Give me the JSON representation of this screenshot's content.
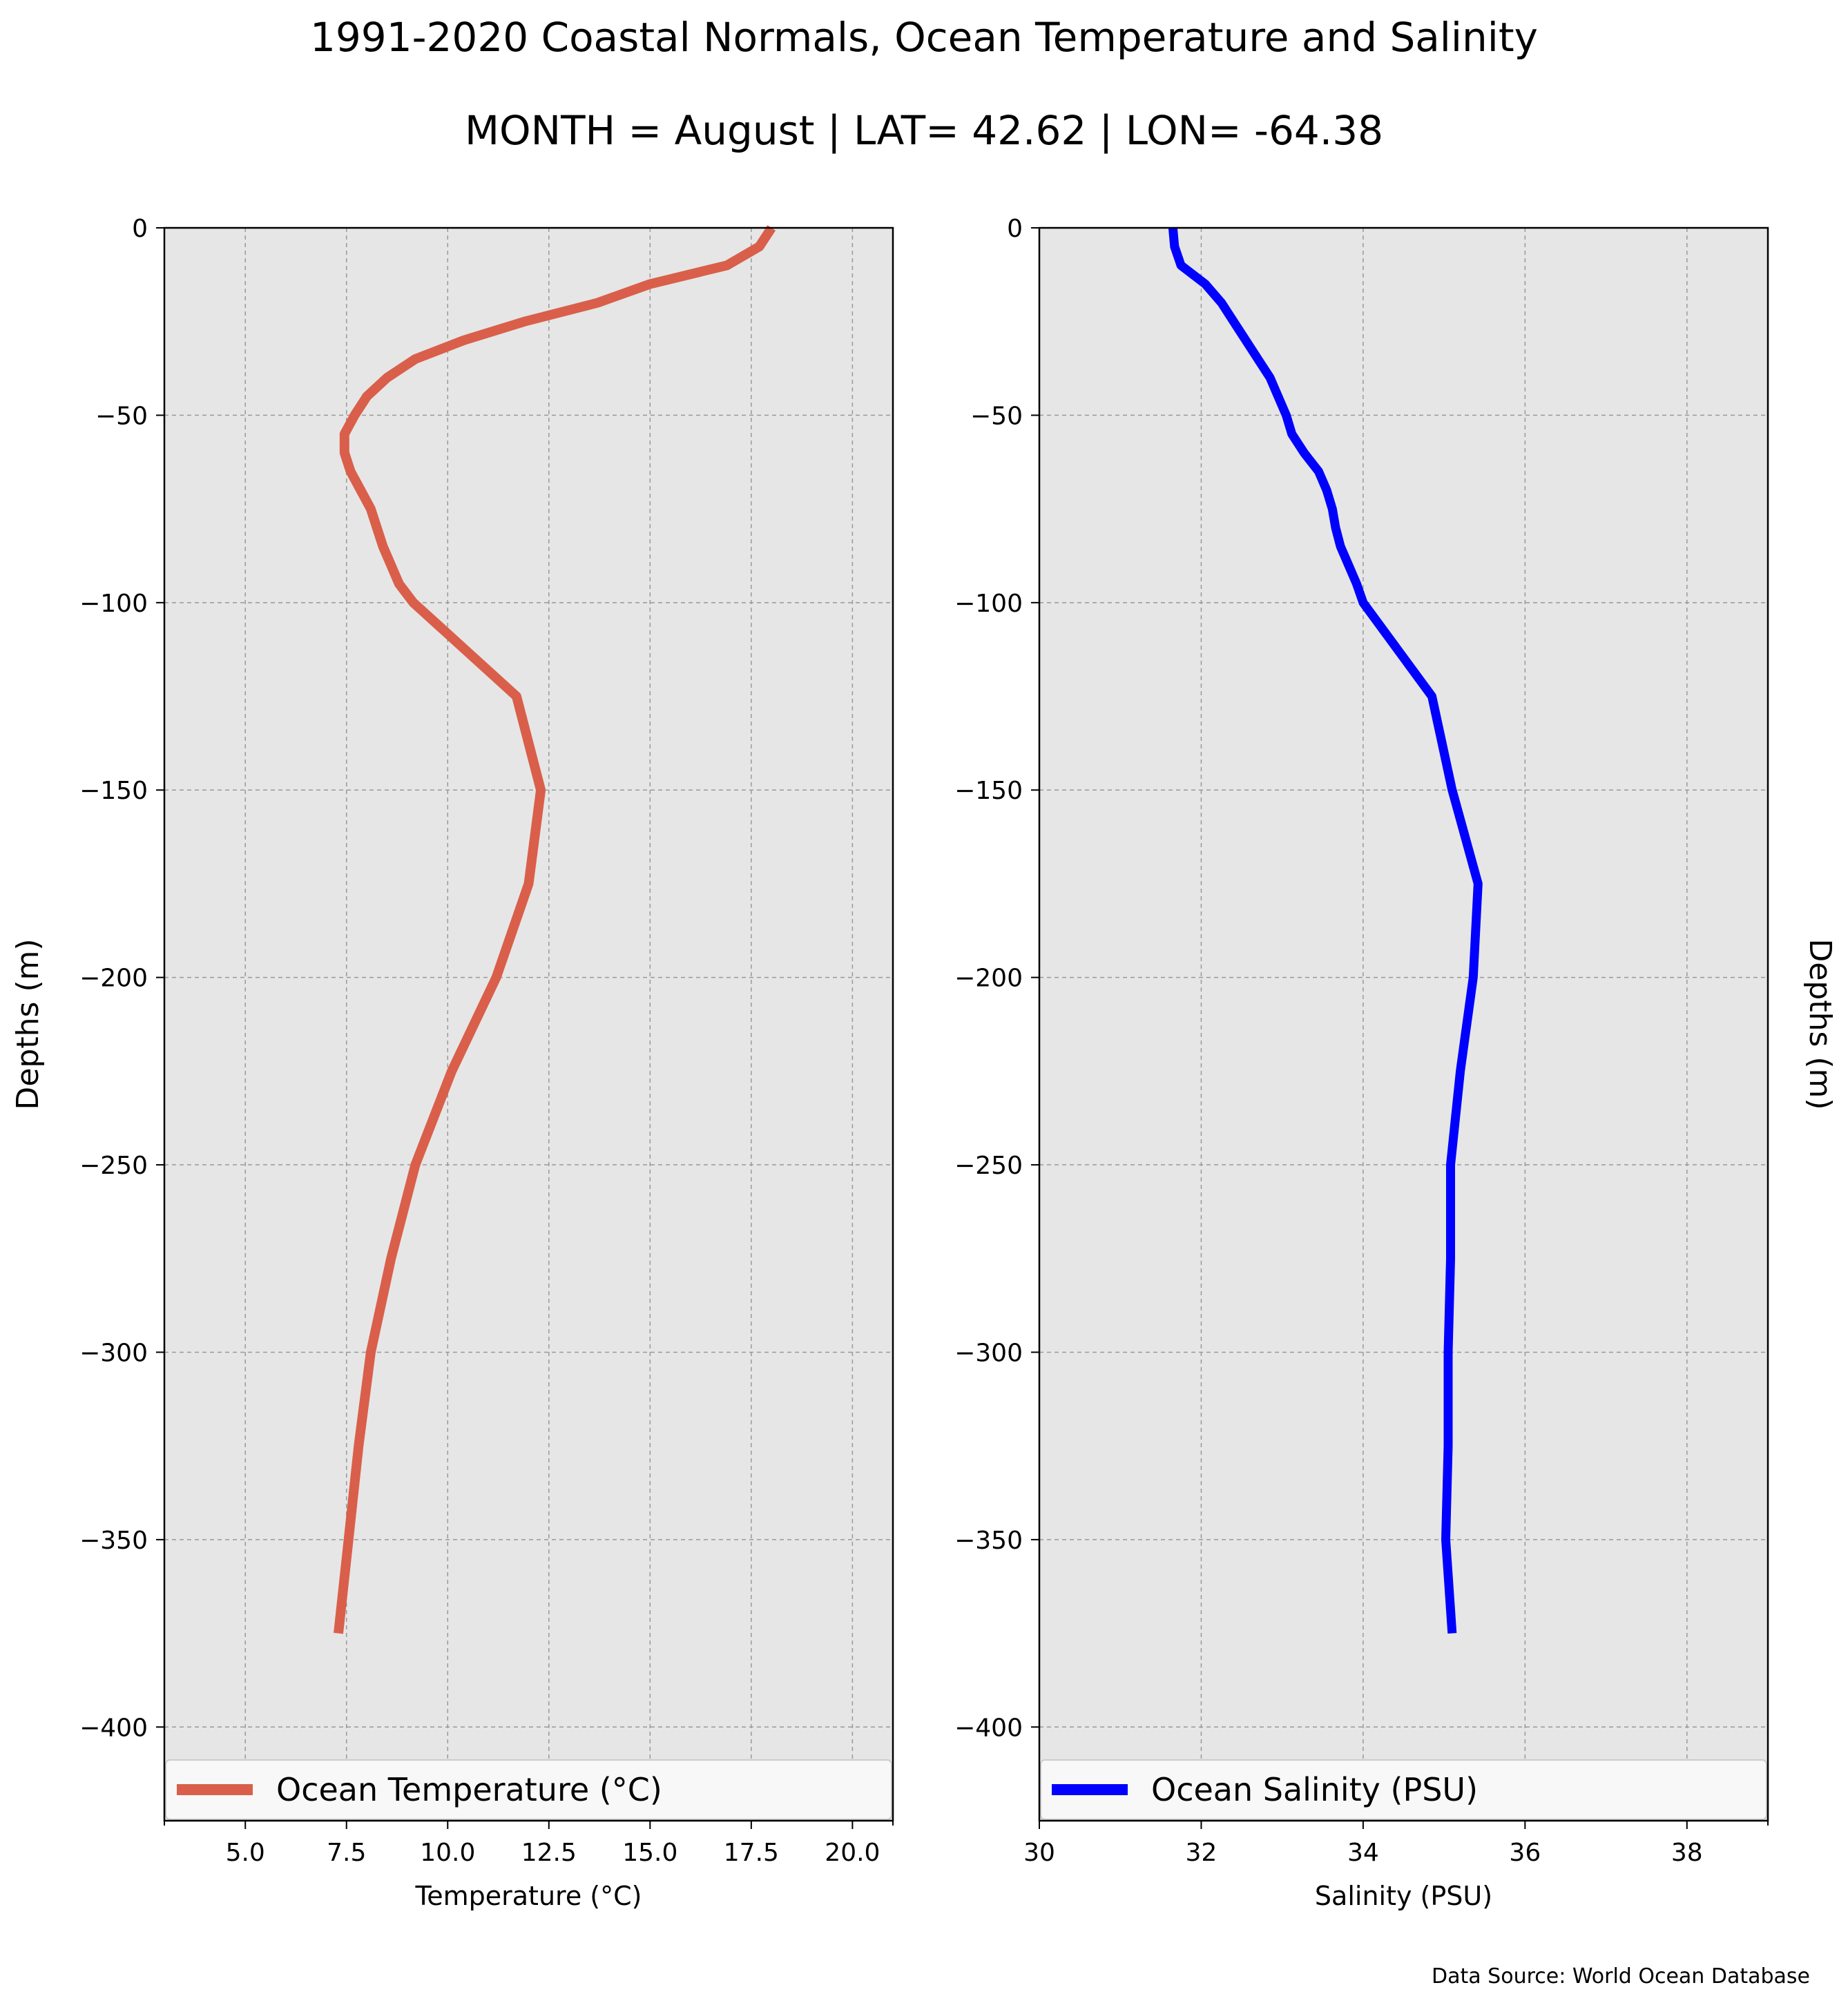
{
  "title": "1991-2020 Coastal Normals, Ocean Temperature and Salinity",
  "subtitle": "MONTH = August | LAT= 42.62 | LON= -64.38",
  "source_note": "Data Source: World Ocean Database",
  "chart_data": [
    {
      "type": "line",
      "orientation": "profile",
      "xlabel": "Temperature ($^\\circ$C)",
      "xlabel_display": "Temperature (°C)",
      "ylabel": "Depths (m)",
      "xlim": [
        3,
        21
      ],
      "ylim": [
        -425,
        0
      ],
      "x_ticks": [
        5.0,
        7.5,
        10.0,
        12.5,
        15.0,
        17.5,
        20.0
      ],
      "x_tick_labels": [
        "5.0",
        "7.5",
        "10.0",
        "12.5",
        "15.0",
        "17.5",
        "20.0"
      ],
      "y_ticks": [
        0,
        -50,
        -100,
        -150,
        -200,
        -250,
        -300,
        -350,
        -400
      ],
      "y_tick_labels": [
        "0",
        "−50",
        "−100",
        "−150",
        "−200",
        "−250",
        "−300",
        "−350",
        "−400"
      ],
      "grid": true,
      "legend_position": "bottom",
      "series": [
        {
          "name": "Ocean Temperature ($^\\circ$C)",
          "display_name": "Ocean Temperature (°C)",
          "color": "#d95f4b",
          "depth": [
            0,
            -5,
            -10,
            -15,
            -20,
            -25,
            -30,
            -35,
            -40,
            -45,
            -50,
            -55,
            -60,
            -65,
            -70,
            -75,
            -80,
            -85,
            -90,
            -95,
            -100,
            -125,
            -150,
            -175,
            -200,
            -225,
            -250,
            -275,
            -300,
            -325,
            -350,
            -375
          ],
          "values": [
            18.0,
            17.7,
            16.9,
            15.0,
            13.7,
            11.9,
            10.4,
            9.2,
            8.5,
            8.0,
            7.7,
            7.45,
            7.45,
            7.6,
            7.85,
            8.1,
            8.25,
            8.4,
            8.6,
            8.8,
            9.15,
            11.7,
            12.3,
            12.0,
            11.2,
            10.1,
            9.2,
            8.6,
            8.1,
            7.8,
            7.55,
            7.3
          ]
        }
      ]
    },
    {
      "type": "line",
      "orientation": "profile",
      "xlabel": "Salinity (PSU)",
      "ylabel": "Depths (m)",
      "xlim": [
        30,
        39
      ],
      "ylim": [
        -425,
        0
      ],
      "x_ticks": [
        30,
        32,
        34,
        36,
        38
      ],
      "x_tick_labels": [
        "30",
        "32",
        "34",
        "36",
        "38"
      ],
      "y_ticks": [
        0,
        -50,
        -100,
        -150,
        -200,
        -250,
        -300,
        -350,
        -400
      ],
      "y_tick_labels": [
        "0",
        "−50",
        "−100",
        "−150",
        "−200",
        "−250",
        "−300",
        "−350",
        "−400"
      ],
      "grid": true,
      "legend_position": "bottom",
      "series": [
        {
          "name": "Ocean Salinity (PSU)",
          "color": "#0000ff",
          "depth": [
            0,
            -5,
            -10,
            -15,
            -20,
            -25,
            -30,
            -35,
            -40,
            -45,
            -50,
            -55,
            -60,
            -65,
            -70,
            -75,
            -80,
            -85,
            -90,
            -95,
            -100,
            -125,
            -150,
            -175,
            -200,
            -225,
            -250,
            -275,
            -300,
            -325,
            -350,
            -375
          ],
          "values": [
            31.65,
            31.67,
            31.75,
            32.05,
            32.25,
            32.4,
            32.55,
            32.7,
            32.85,
            32.95,
            33.05,
            33.12,
            33.27,
            33.45,
            33.55,
            33.62,
            33.66,
            33.72,
            33.82,
            33.92,
            34.0,
            34.85,
            35.1,
            35.42,
            35.36,
            35.2,
            35.08,
            35.08,
            35.05,
            35.05,
            35.02,
            35.1
          ]
        }
      ]
    }
  ]
}
